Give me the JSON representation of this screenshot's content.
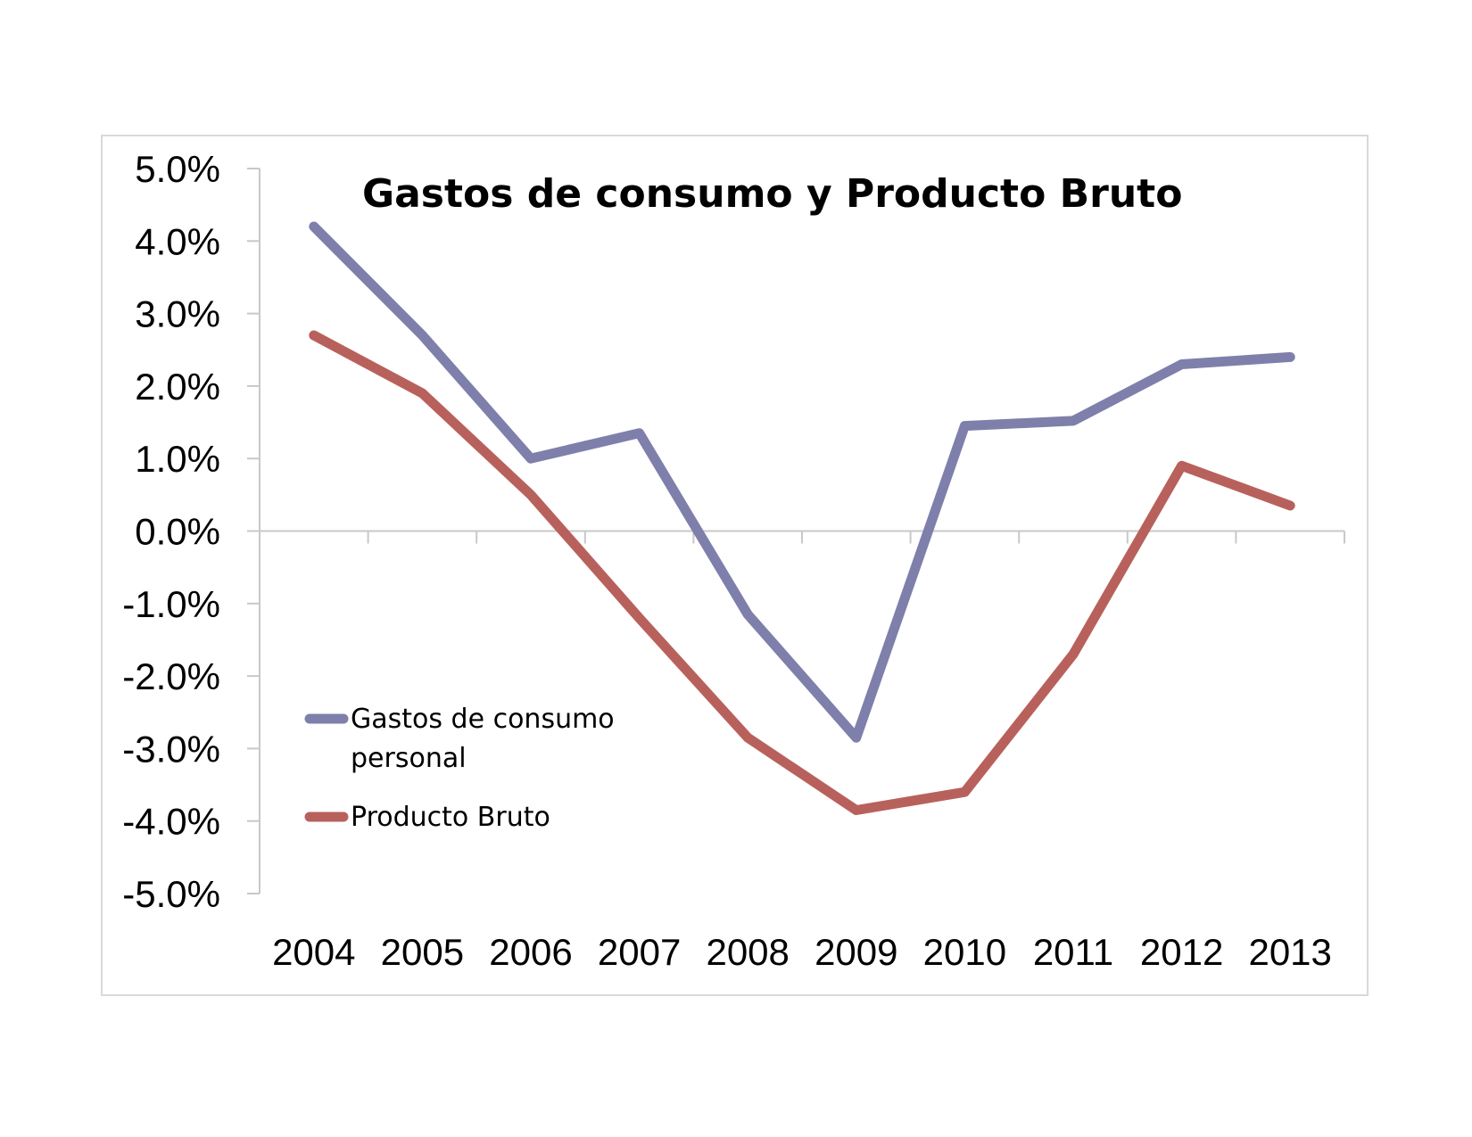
{
  "chart_data": {
    "type": "line",
    "title": "Gastos de consumo y Producto Bruto",
    "xlabel": "",
    "ylabel": "",
    "categories": [
      "2004",
      "2005",
      "2006",
      "2007",
      "2008",
      "2009",
      "2010",
      "2011",
      "2012",
      "2013"
    ],
    "y_ticks": [
      "5.0%",
      "4.0%",
      "3.0%",
      "2.0%",
      "1.0%",
      "0.0%",
      "-1.0%",
      "-2.0%",
      "-3.0%",
      "-4.0%",
      "-5.0%"
    ],
    "ylim": [
      -5.0,
      5.0
    ],
    "y_unit": "%",
    "grid": false,
    "legend_position": "left",
    "series": [
      {
        "name": "Gastos de consumo personal",
        "legend_lines": [
          "Gastos de consumo",
          "personal"
        ],
        "color": "#7f7fab",
        "values": [
          4.2,
          2.7,
          1.0,
          1.35,
          -1.15,
          -2.85,
          1.45,
          1.52,
          2.3,
          2.4
        ]
      },
      {
        "name": "Producto Bruto",
        "legend_lines": [
          "Producto Bruto"
        ],
        "color": "#b8615c",
        "values": [
          2.7,
          1.9,
          0.5,
          -1.2,
          -2.85,
          -3.85,
          -3.6,
          -1.7,
          0.9,
          0.35
        ]
      }
    ]
  }
}
